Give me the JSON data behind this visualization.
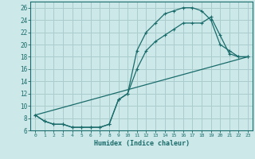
{
  "xlabel": "Humidex (Indice chaleur)",
  "bg_color": "#cce8e8",
  "line_color": "#1a6b6b",
  "grid_color": "#aacccc",
  "xlim": [
    -0.5,
    23.5
  ],
  "ylim": [
    6,
    27
  ],
  "yticks": [
    6,
    8,
    10,
    12,
    14,
    16,
    18,
    20,
    22,
    24,
    26
  ],
  "xticks": [
    0,
    1,
    2,
    3,
    4,
    5,
    6,
    7,
    8,
    9,
    10,
    11,
    12,
    13,
    14,
    15,
    16,
    17,
    18,
    19,
    20,
    21,
    22,
    23
  ],
  "line1_x": [
    0,
    1,
    2,
    3,
    4,
    5,
    6,
    7,
    8,
    9,
    10,
    11,
    12,
    13,
    14,
    15,
    16,
    17,
    18,
    19,
    20,
    21,
    22,
    23
  ],
  "line1_y": [
    8.5,
    7.5,
    7.0,
    7.0,
    6.5,
    6.5,
    6.5,
    6.5,
    7.0,
    11.0,
    12.0,
    19.0,
    22.0,
    23.5,
    25.0,
    25.5,
    26.0,
    26.0,
    25.5,
    24.0,
    20.0,
    19.0,
    18.0,
    18.0
  ],
  "line2_x": [
    0,
    1,
    2,
    3,
    4,
    5,
    6,
    7,
    8,
    9,
    10,
    11,
    12,
    13,
    14,
    15,
    16,
    17,
    18,
    19,
    20,
    21,
    22,
    23
  ],
  "line2_y": [
    8.5,
    7.5,
    7.0,
    7.0,
    6.5,
    6.5,
    6.5,
    6.5,
    7.0,
    11.0,
    12.0,
    16.0,
    19.0,
    20.5,
    21.5,
    22.5,
    23.5,
    23.5,
    23.5,
    24.5,
    21.5,
    18.5,
    18.0,
    18.0
  ],
  "line3_x": [
    0,
    23
  ],
  "line3_y": [
    8.5,
    18.0
  ]
}
